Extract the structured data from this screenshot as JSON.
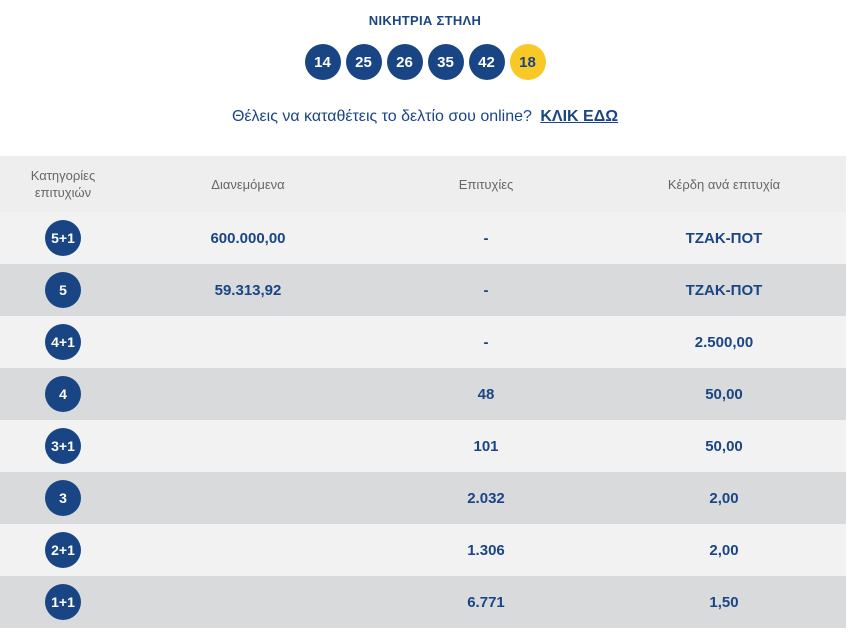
{
  "header": {
    "title": "ΝΙΚΗΤΡΙΑ ΣΤΗΛΗ",
    "numbers": [
      "14",
      "25",
      "26",
      "35",
      "42"
    ],
    "bonus": "18",
    "cta_text": "Θέλεις να καταθέτεις το δελτίο σου online?",
    "cta_link": "ΚΛΙΚ ΕΔΩ"
  },
  "colors": {
    "primary": "#1a4585",
    "bonus": "#f7c826",
    "row_light": "#f2f2f2",
    "row_dark": "#d9dadb"
  },
  "table": {
    "headers": [
      "Κατηγορίες επιτυχιών",
      "Διανεμόμενα",
      "Επιτυχίες",
      "Κέρδη ανά επιτυχία"
    ],
    "rows": [
      {
        "cat": "5+1",
        "distributed": "600.000,00",
        "winners": "-",
        "prize": "ΤΖΑΚ-ΠΟΤ"
      },
      {
        "cat": "5",
        "distributed": "59.313,92",
        "winners": "-",
        "prize": "ΤΖΑΚ-ΠΟΤ"
      },
      {
        "cat": "4+1",
        "distributed": "",
        "winners": "-",
        "prize": "2.500,00"
      },
      {
        "cat": "4",
        "distributed": "",
        "winners": "48",
        "prize": "50,00"
      },
      {
        "cat": "3+1",
        "distributed": "",
        "winners": "101",
        "prize": "50,00"
      },
      {
        "cat": "3",
        "distributed": "",
        "winners": "2.032",
        "prize": "2,00"
      },
      {
        "cat": "2+1",
        "distributed": "",
        "winners": "1.306",
        "prize": "2,00"
      },
      {
        "cat": "1+1",
        "distributed": "",
        "winners": "6.771",
        "prize": "1,50"
      }
    ]
  }
}
